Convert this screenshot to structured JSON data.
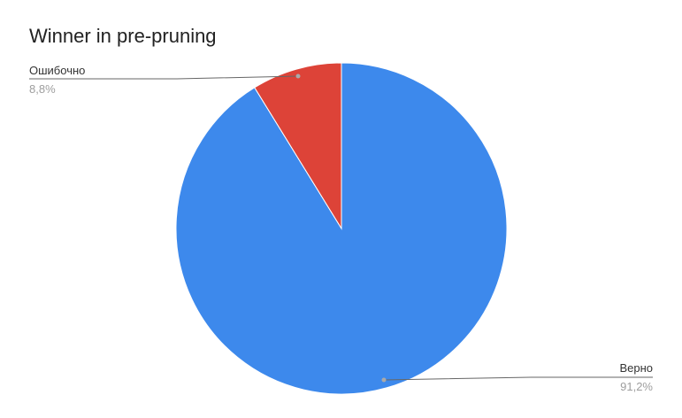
{
  "chart_data": {
    "type": "pie",
    "title": "Winner in pre-pruning",
    "slices": [
      {
        "label": "Верно",
        "value": 91.2,
        "value_label": "91,2%",
        "color": "#3d89ec"
      },
      {
        "label": "Ошибочно",
        "value": 8.8,
        "value_label": "8,8%",
        "color": "#dd4338"
      }
    ],
    "legend": "none",
    "label_style": "leader-lines"
  }
}
